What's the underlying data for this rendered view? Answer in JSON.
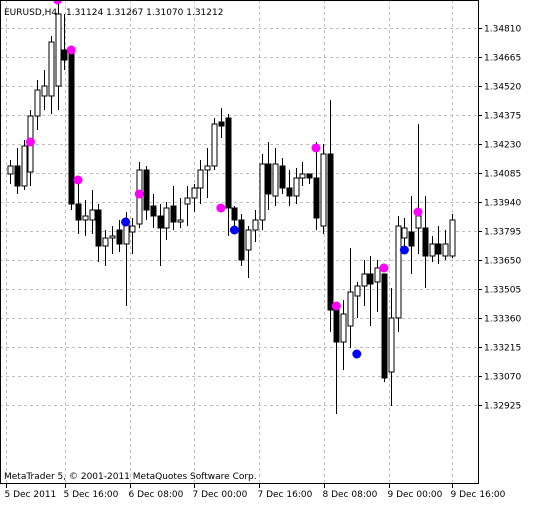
{
  "header": {
    "symbol": "EURUSD,H4",
    "ohlc": "1.31124 1.31267 1.31070 1.31212"
  },
  "footer": {
    "copyright": "MetaTrader 5, © 2001-2011 MetaQuotes Software Corp."
  },
  "colors": {
    "background": "#ffffff",
    "grid": "#c0c0c0",
    "candle": "#000000",
    "marker_top": "#ff00ff",
    "marker_bottom": "#0000ff"
  },
  "chart_data": {
    "type": "candlestick",
    "y_ticks": [
      "1.34810",
      "1.34665",
      "1.34520",
      "1.34375",
      "1.34230",
      "1.34085",
      "1.33940",
      "1.33795",
      "1.33650",
      "1.33505",
      "1.33360",
      "1.33215",
      "1.33070",
      "1.32925"
    ],
    "x_ticks": [
      "5 Dec 2011",
      "5 Dec 16:00",
      "6 Dec 08:00",
      "7 Dec 00:00",
      "7 Dec 16:00",
      "8 Dec 08:00",
      "9 Dec 00:00",
      "9 Dec 16:00"
    ],
    "ylim": [
      1.328,
      1.3495
    ],
    "grid": true,
    "candles": [
      {
        "o": 1.3408,
        "h": 1.3415,
        "l": 1.3403,
        "c": 1.3412
      },
      {
        "o": 1.3412,
        "h": 1.3421,
        "l": 1.3398,
        "c": 1.3402
      },
      {
        "o": 1.3402,
        "h": 1.3425,
        "l": 1.34,
        "c": 1.3422
      },
      {
        "o": 1.3409,
        "h": 1.344,
        "l": 1.3402,
        "c": 1.3437
      },
      {
        "o": 1.3437,
        "h": 1.3455,
        "l": 1.343,
        "c": 1.345
      },
      {
        "o": 1.3447,
        "h": 1.346,
        "l": 1.344,
        "c": 1.3452
      },
      {
        "o": 1.3447,
        "h": 1.3477,
        "l": 1.3438,
        "c": 1.3474
      },
      {
        "o": 1.3452,
        "h": 1.3494,
        "l": 1.344,
        "c": 1.3488
      },
      {
        "o": 1.347,
        "h": 1.3488,
        "l": 1.346,
        "c": 1.3465
      },
      {
        "o": 1.3468,
        "h": 1.3472,
        "l": 1.339,
        "c": 1.3393
      },
      {
        "o": 1.3393,
        "h": 1.3405,
        "l": 1.3378,
        "c": 1.3385
      },
      {
        "o": 1.3385,
        "h": 1.3395,
        "l": 1.3377,
        "c": 1.3387
      },
      {
        "o": 1.3385,
        "h": 1.34,
        "l": 1.3378,
        "c": 1.339
      },
      {
        "o": 1.339,
        "h": 1.3393,
        "l": 1.3364,
        "c": 1.3372
      },
      {
        "o": 1.3372,
        "h": 1.338,
        "l": 1.3362,
        "c": 1.3376
      },
      {
        "o": 1.3376,
        "h": 1.3382,
        "l": 1.3368,
        "c": 1.3377
      },
      {
        "o": 1.338,
        "h": 1.3385,
        "l": 1.3369,
        "c": 1.3373
      },
      {
        "o": 1.3373,
        "h": 1.3389,
        "l": 1.3342,
        "c": 1.3384
      },
      {
        "o": 1.3379,
        "h": 1.3386,
        "l": 1.3368,
        "c": 1.3382
      },
      {
        "o": 1.3383,
        "h": 1.3414,
        "l": 1.3381,
        "c": 1.341
      },
      {
        "o": 1.341,
        "h": 1.3412,
        "l": 1.3385,
        "c": 1.339
      },
      {
        "o": 1.3392,
        "h": 1.3398,
        "l": 1.3381,
        "c": 1.3387
      },
      {
        "o": 1.3387,
        "h": 1.3393,
        "l": 1.3362,
        "c": 1.3381
      },
      {
        "o": 1.3381,
        "h": 1.3394,
        "l": 1.3375,
        "c": 1.3391
      },
      {
        "o": 1.3392,
        "h": 1.3402,
        "l": 1.338,
        "c": 1.3384
      },
      {
        "o": 1.3384,
        "h": 1.3396,
        "l": 1.3381,
        "c": 1.3385
      },
      {
        "o": 1.3393,
        "h": 1.3402,
        "l": 1.3382,
        "c": 1.3396
      },
      {
        "o": 1.3396,
        "h": 1.3403,
        "l": 1.3389,
        "c": 1.3401
      },
      {
        "o": 1.3401,
        "h": 1.3415,
        "l": 1.3393,
        "c": 1.341
      },
      {
        "o": 1.341,
        "h": 1.3421,
        "l": 1.3396,
        "c": 1.3412
      },
      {
        "o": 1.3412,
        "h": 1.3436,
        "l": 1.341,
        "c": 1.3433
      },
      {
        "o": 1.3434,
        "h": 1.3441,
        "l": 1.3426,
        "c": 1.3432
      },
      {
        "o": 1.3436,
        "h": 1.3438,
        "l": 1.3377,
        "c": 1.3391
      },
      {
        "o": 1.3391,
        "h": 1.3392,
        "l": 1.3378,
        "c": 1.3385
      },
      {
        "o": 1.3385,
        "h": 1.3388,
        "l": 1.3362,
        "c": 1.3365
      },
      {
        "o": 1.337,
        "h": 1.3382,
        "l": 1.3356,
        "c": 1.338
      },
      {
        "o": 1.338,
        "h": 1.339,
        "l": 1.3374,
        "c": 1.3385
      },
      {
        "o": 1.3385,
        "h": 1.3418,
        "l": 1.338,
        "c": 1.3413
      },
      {
        "o": 1.3413,
        "h": 1.3424,
        "l": 1.339,
        "c": 1.3398
      },
      {
        "o": 1.3397,
        "h": 1.3421,
        "l": 1.3392,
        "c": 1.3413
      },
      {
        "o": 1.3412,
        "h": 1.3416,
        "l": 1.3398,
        "c": 1.3401
      },
      {
        "o": 1.3401,
        "h": 1.341,
        "l": 1.3392,
        "c": 1.3397
      },
      {
        "o": 1.3397,
        "h": 1.3411,
        "l": 1.3393,
        "c": 1.3406
      },
      {
        "o": 1.3406,
        "h": 1.3414,
        "l": 1.3402,
        "c": 1.3408
      },
      {
        "o": 1.3408,
        "h": 1.3408,
        "l": 1.3403,
        "c": 1.3406
      },
      {
        "o": 1.3406,
        "h": 1.3424,
        "l": 1.338,
        "c": 1.3386
      },
      {
        "o": 1.3382,
        "h": 1.3423,
        "l": 1.3378,
        "c": 1.3418
      },
      {
        "o": 1.3418,
        "h": 1.3445,
        "l": 1.3329,
        "c": 1.334
      },
      {
        "o": 1.334,
        "h": 1.3341,
        "l": 1.3288,
        "c": 1.3324
      },
      {
        "o": 1.3324,
        "h": 1.3345,
        "l": 1.331,
        "c": 1.3338
      },
      {
        "o": 1.3332,
        "h": 1.3371,
        "l": 1.3321,
        "c": 1.3349
      },
      {
        "o": 1.3347,
        "h": 1.3354,
        "l": 1.3336,
        "c": 1.3352
      },
      {
        "o": 1.3352,
        "h": 1.3365,
        "l": 1.3342,
        "c": 1.3358
      },
      {
        "o": 1.3358,
        "h": 1.3367,
        "l": 1.3332,
        "c": 1.3353
      },
      {
        "o": 1.3354,
        "h": 1.3365,
        "l": 1.3339,
        "c": 1.3361
      },
      {
        "o": 1.3358,
        "h": 1.3358,
        "l": 1.3304,
        "c": 1.3306
      },
      {
        "o": 1.3309,
        "h": 1.3351,
        "l": 1.3292,
        "c": 1.3336
      },
      {
        "o": 1.3336,
        "h": 1.3387,
        "l": 1.3329,
        "c": 1.3382
      },
      {
        "o": 1.3376,
        "h": 1.3386,
        "l": 1.3368,
        "c": 1.3381
      },
      {
        "o": 1.3379,
        "h": 1.3397,
        "l": 1.3358,
        "c": 1.3372
      },
      {
        "o": 1.3381,
        "h": 1.3433,
        "l": 1.3368,
        "c": 1.3387
      },
      {
        "o": 1.3381,
        "h": 1.3397,
        "l": 1.3351,
        "c": 1.3367
      },
      {
        "o": 1.3367,
        "h": 1.3377,
        "l": 1.3364,
        "c": 1.3373
      },
      {
        "o": 1.3373,
        "h": 1.3382,
        "l": 1.3363,
        "c": 1.3368
      },
      {
        "o": 1.3367,
        "h": 1.338,
        "l": 1.3365,
        "c": 1.3373
      },
      {
        "o": 1.3367,
        "h": 1.3388,
        "l": 1.3366,
        "c": 1.3385
      }
    ],
    "markers_top": [
      {
        "i": 3,
        "y": 1.3424
      },
      {
        "i": 7,
        "y": 1.3495
      },
      {
        "i": 9,
        "y": 1.347
      },
      {
        "i": 10,
        "y": 1.3405
      },
      {
        "i": 19,
        "y": 1.3398
      },
      {
        "i": 31,
        "y": 1.3391
      },
      {
        "i": 45,
        "y": 1.3421
      },
      {
        "i": 48,
        "y": 1.3342
      },
      {
        "i": 55,
        "y": 1.3361
      },
      {
        "i": 60,
        "y": 1.3389
      }
    ],
    "markers_bottom": [
      {
        "i": 17,
        "y": 1.3384
      },
      {
        "i": 33,
        "y": 1.338
      },
      {
        "i": 51,
        "y": 1.3318
      },
      {
        "i": 58,
        "y": 1.337
      }
    ]
  }
}
